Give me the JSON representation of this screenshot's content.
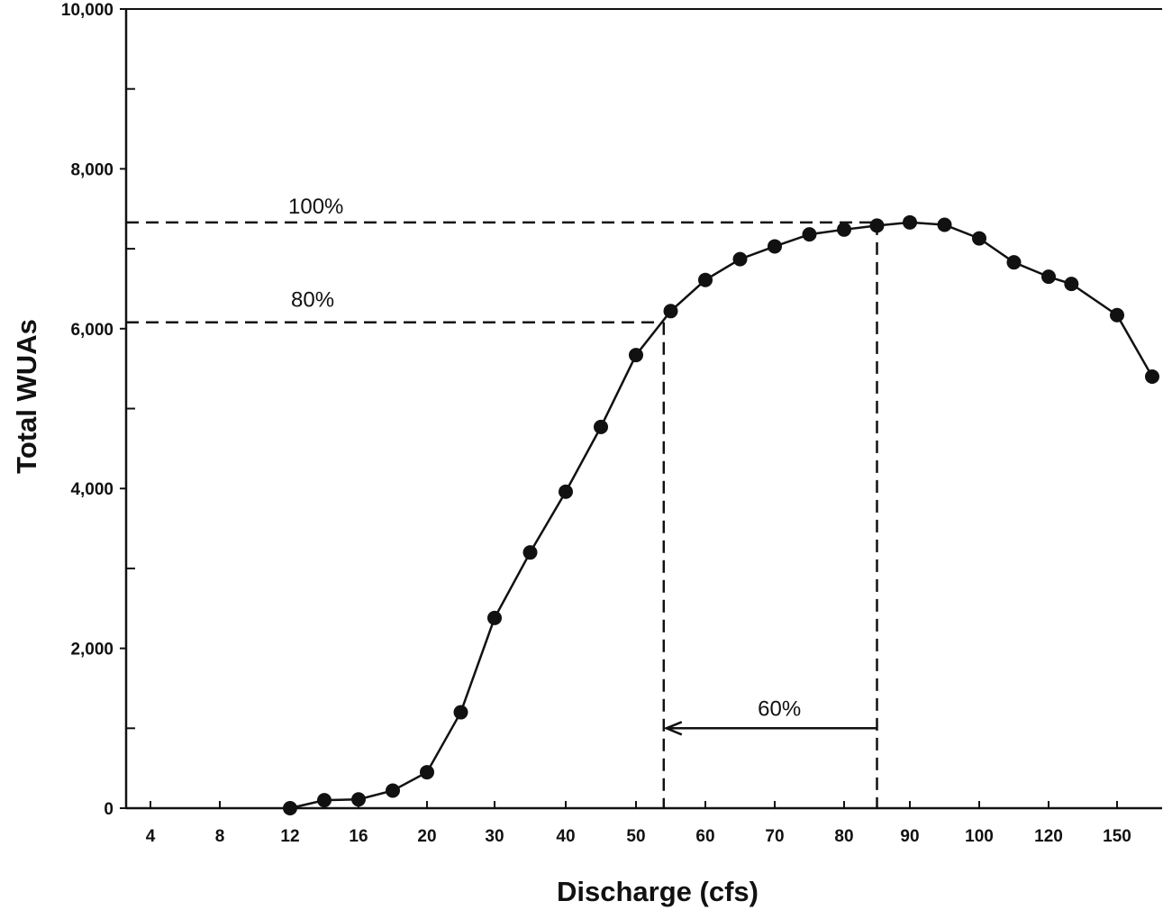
{
  "chart_data": {
    "type": "line",
    "title": "",
    "xlabel": "Discharge (cfs)",
    "ylabel": "Total WUAs",
    "ylim": [
      0,
      10000
    ],
    "yticks": [
      0,
      2000,
      4000,
      6000,
      8000,
      10000
    ],
    "ytick_labels": [
      "0",
      "2,000",
      "4,000",
      "6,000",
      "8,000",
      "10,000"
    ],
    "x_scale": "categorical-nonlinear",
    "x_categories": [
      "4",
      "8",
      "12",
      "16",
      "20",
      "30",
      "40",
      "50",
      "60",
      "70",
      "80",
      "90",
      "100",
      "120",
      "150"
    ],
    "grid": false,
    "series": [
      {
        "x": [
          12,
          14,
          16,
          18,
          20,
          25,
          30,
          35,
          40,
          45,
          50,
          55,
          60,
          65,
          70,
          75,
          80,
          85,
          90,
          95,
          100,
          110,
          120,
          130,
          150,
          170
        ],
        "values": [
          0,
          100,
          110,
          220,
          450,
          1200,
          2380,
          3200,
          3960,
          4770,
          5670,
          6220,
          6610,
          6870,
          7030,
          7180,
          7240,
          7290,
          7330,
          7300,
          7130,
          6830,
          6650,
          6560,
          6170,
          5400
        ]
      }
    ],
    "reference_lines": {
      "pct100": {
        "label": "100%",
        "y": 7330,
        "x_end": 85
      },
      "pct80": {
        "label": "80%",
        "y": 6080,
        "x_end": 54
      },
      "pct60": {
        "label": "60%",
        "x_from": 54,
        "x_to": 85
      }
    }
  }
}
